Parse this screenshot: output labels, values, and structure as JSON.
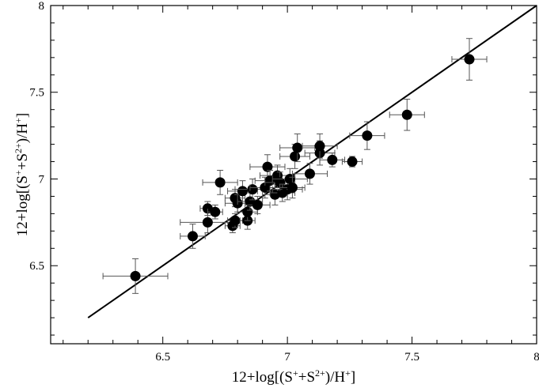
{
  "chart_data": {
    "type": "scatter",
    "title": "",
    "xlabel": {
      "base": "12+log[(S",
      "sup1": "+",
      "mid1": "+S",
      "sup2": "2+",
      "mid2": ")/H",
      "sup3": "+",
      "end": "]"
    },
    "ylabel": {
      "base": "12+log[(S",
      "sup1": "+",
      "mid1": "+S",
      "sup2": "2+",
      "mid2": ")/H",
      "sup3": "+",
      "end": "]"
    },
    "xlim": [
      6.05,
      8.0
    ],
    "ylim": [
      6.05,
      8.0
    ],
    "xticks": [
      "6.5",
      "7",
      "7.5",
      "8"
    ],
    "yticks": [
      "6.5",
      "7",
      "7.5",
      "8"
    ],
    "xtick_values": [
      6.5,
      7.0,
      7.5,
      8.0
    ],
    "ytick_values": [
      6.5,
      7.0,
      7.5,
      8.0
    ],
    "grid": false,
    "reference_line": {
      "x": [
        6.2,
        8.0
      ],
      "y": [
        6.2,
        8.0
      ]
    },
    "points": [
      {
        "x": 6.39,
        "y": 6.44,
        "xerr": 0.13,
        "yerr": 0.1
      },
      {
        "x": 6.62,
        "y": 6.67,
        "xerr": 0.05,
        "yerr": 0.07
      },
      {
        "x": 6.68,
        "y": 6.75,
        "xerr": 0.11,
        "yerr": 0.06
      },
      {
        "x": 6.68,
        "y": 6.83,
        "xerr": 0.03,
        "yerr": 0.04
      },
      {
        "x": 6.71,
        "y": 6.81,
        "xerr": 0.03,
        "yerr": 0.04
      },
      {
        "x": 6.73,
        "y": 6.98,
        "xerr": 0.07,
        "yerr": 0.07
      },
      {
        "x": 6.78,
        "y": 6.73,
        "xerr": 0.03,
        "yerr": 0.04
      },
      {
        "x": 6.79,
        "y": 6.76,
        "xerr": 0.03,
        "yerr": 0.04
      },
      {
        "x": 6.79,
        "y": 6.89,
        "xerr": 0.04,
        "yerr": 0.05
      },
      {
        "x": 6.8,
        "y": 6.86,
        "xerr": 0.05,
        "yerr": 0.05
      },
      {
        "x": 6.82,
        "y": 6.93,
        "xerr": 0.06,
        "yerr": 0.06
      },
      {
        "x": 6.84,
        "y": 6.76,
        "xerr": 0.03,
        "yerr": 0.05
      },
      {
        "x": 6.84,
        "y": 6.81,
        "xerr": 0.04,
        "yerr": 0.05
      },
      {
        "x": 6.85,
        "y": 6.87,
        "xerr": 0.05,
        "yerr": 0.05
      },
      {
        "x": 6.86,
        "y": 6.94,
        "xerr": 0.07,
        "yerr": 0.06
      },
      {
        "x": 6.88,
        "y": 6.85,
        "xerr": 0.05,
        "yerr": 0.05
      },
      {
        "x": 6.91,
        "y": 6.95,
        "xerr": 0.06,
        "yerr": 0.06
      },
      {
        "x": 6.92,
        "y": 7.07,
        "xerr": 0.07,
        "yerr": 0.07
      },
      {
        "x": 6.93,
        "y": 6.99,
        "xerr": 0.06,
        "yerr": 0.06
      },
      {
        "x": 6.95,
        "y": 6.91,
        "xerr": 0.05,
        "yerr": 0.06
      },
      {
        "x": 6.96,
        "y": 7.02,
        "xerr": 0.07,
        "yerr": 0.06
      },
      {
        "x": 6.97,
        "y": 6.98,
        "xerr": 0.06,
        "yerr": 0.06
      },
      {
        "x": 6.98,
        "y": 6.92,
        "xerr": 0.05,
        "yerr": 0.05
      },
      {
        "x": 7.0,
        "y": 6.94,
        "xerr": 0.06,
        "yerr": 0.06
      },
      {
        "x": 7.01,
        "y": 7.0,
        "xerr": 0.07,
        "yerr": 0.06
      },
      {
        "x": 7.02,
        "y": 6.95,
        "xerr": 0.05,
        "yerr": 0.06
      },
      {
        "x": 7.03,
        "y": 7.13,
        "xerr": 0.06,
        "yerr": 0.07
      },
      {
        "x": 7.04,
        "y": 7.18,
        "xerr": 0.07,
        "yerr": 0.08
      },
      {
        "x": 7.09,
        "y": 7.03,
        "xerr": 0.07,
        "yerr": 0.06
      },
      {
        "x": 7.13,
        "y": 7.15,
        "xerr": 0.06,
        "yerr": 0.07
      },
      {
        "x": 7.13,
        "y": 7.19,
        "xerr": 0.07,
        "yerr": 0.07
      },
      {
        "x": 7.18,
        "y": 7.11,
        "xerr": 0.05,
        "yerr": 0.04
      },
      {
        "x": 7.26,
        "y": 7.1,
        "xerr": 0.04,
        "yerr": 0.03
      },
      {
        "x": 7.32,
        "y": 7.25,
        "xerr": 0.07,
        "yerr": 0.08
      },
      {
        "x": 7.48,
        "y": 7.37,
        "xerr": 0.07,
        "yerr": 0.09
      },
      {
        "x": 7.73,
        "y": 7.69,
        "xerr": 0.07,
        "yerr": 0.12
      }
    ]
  }
}
